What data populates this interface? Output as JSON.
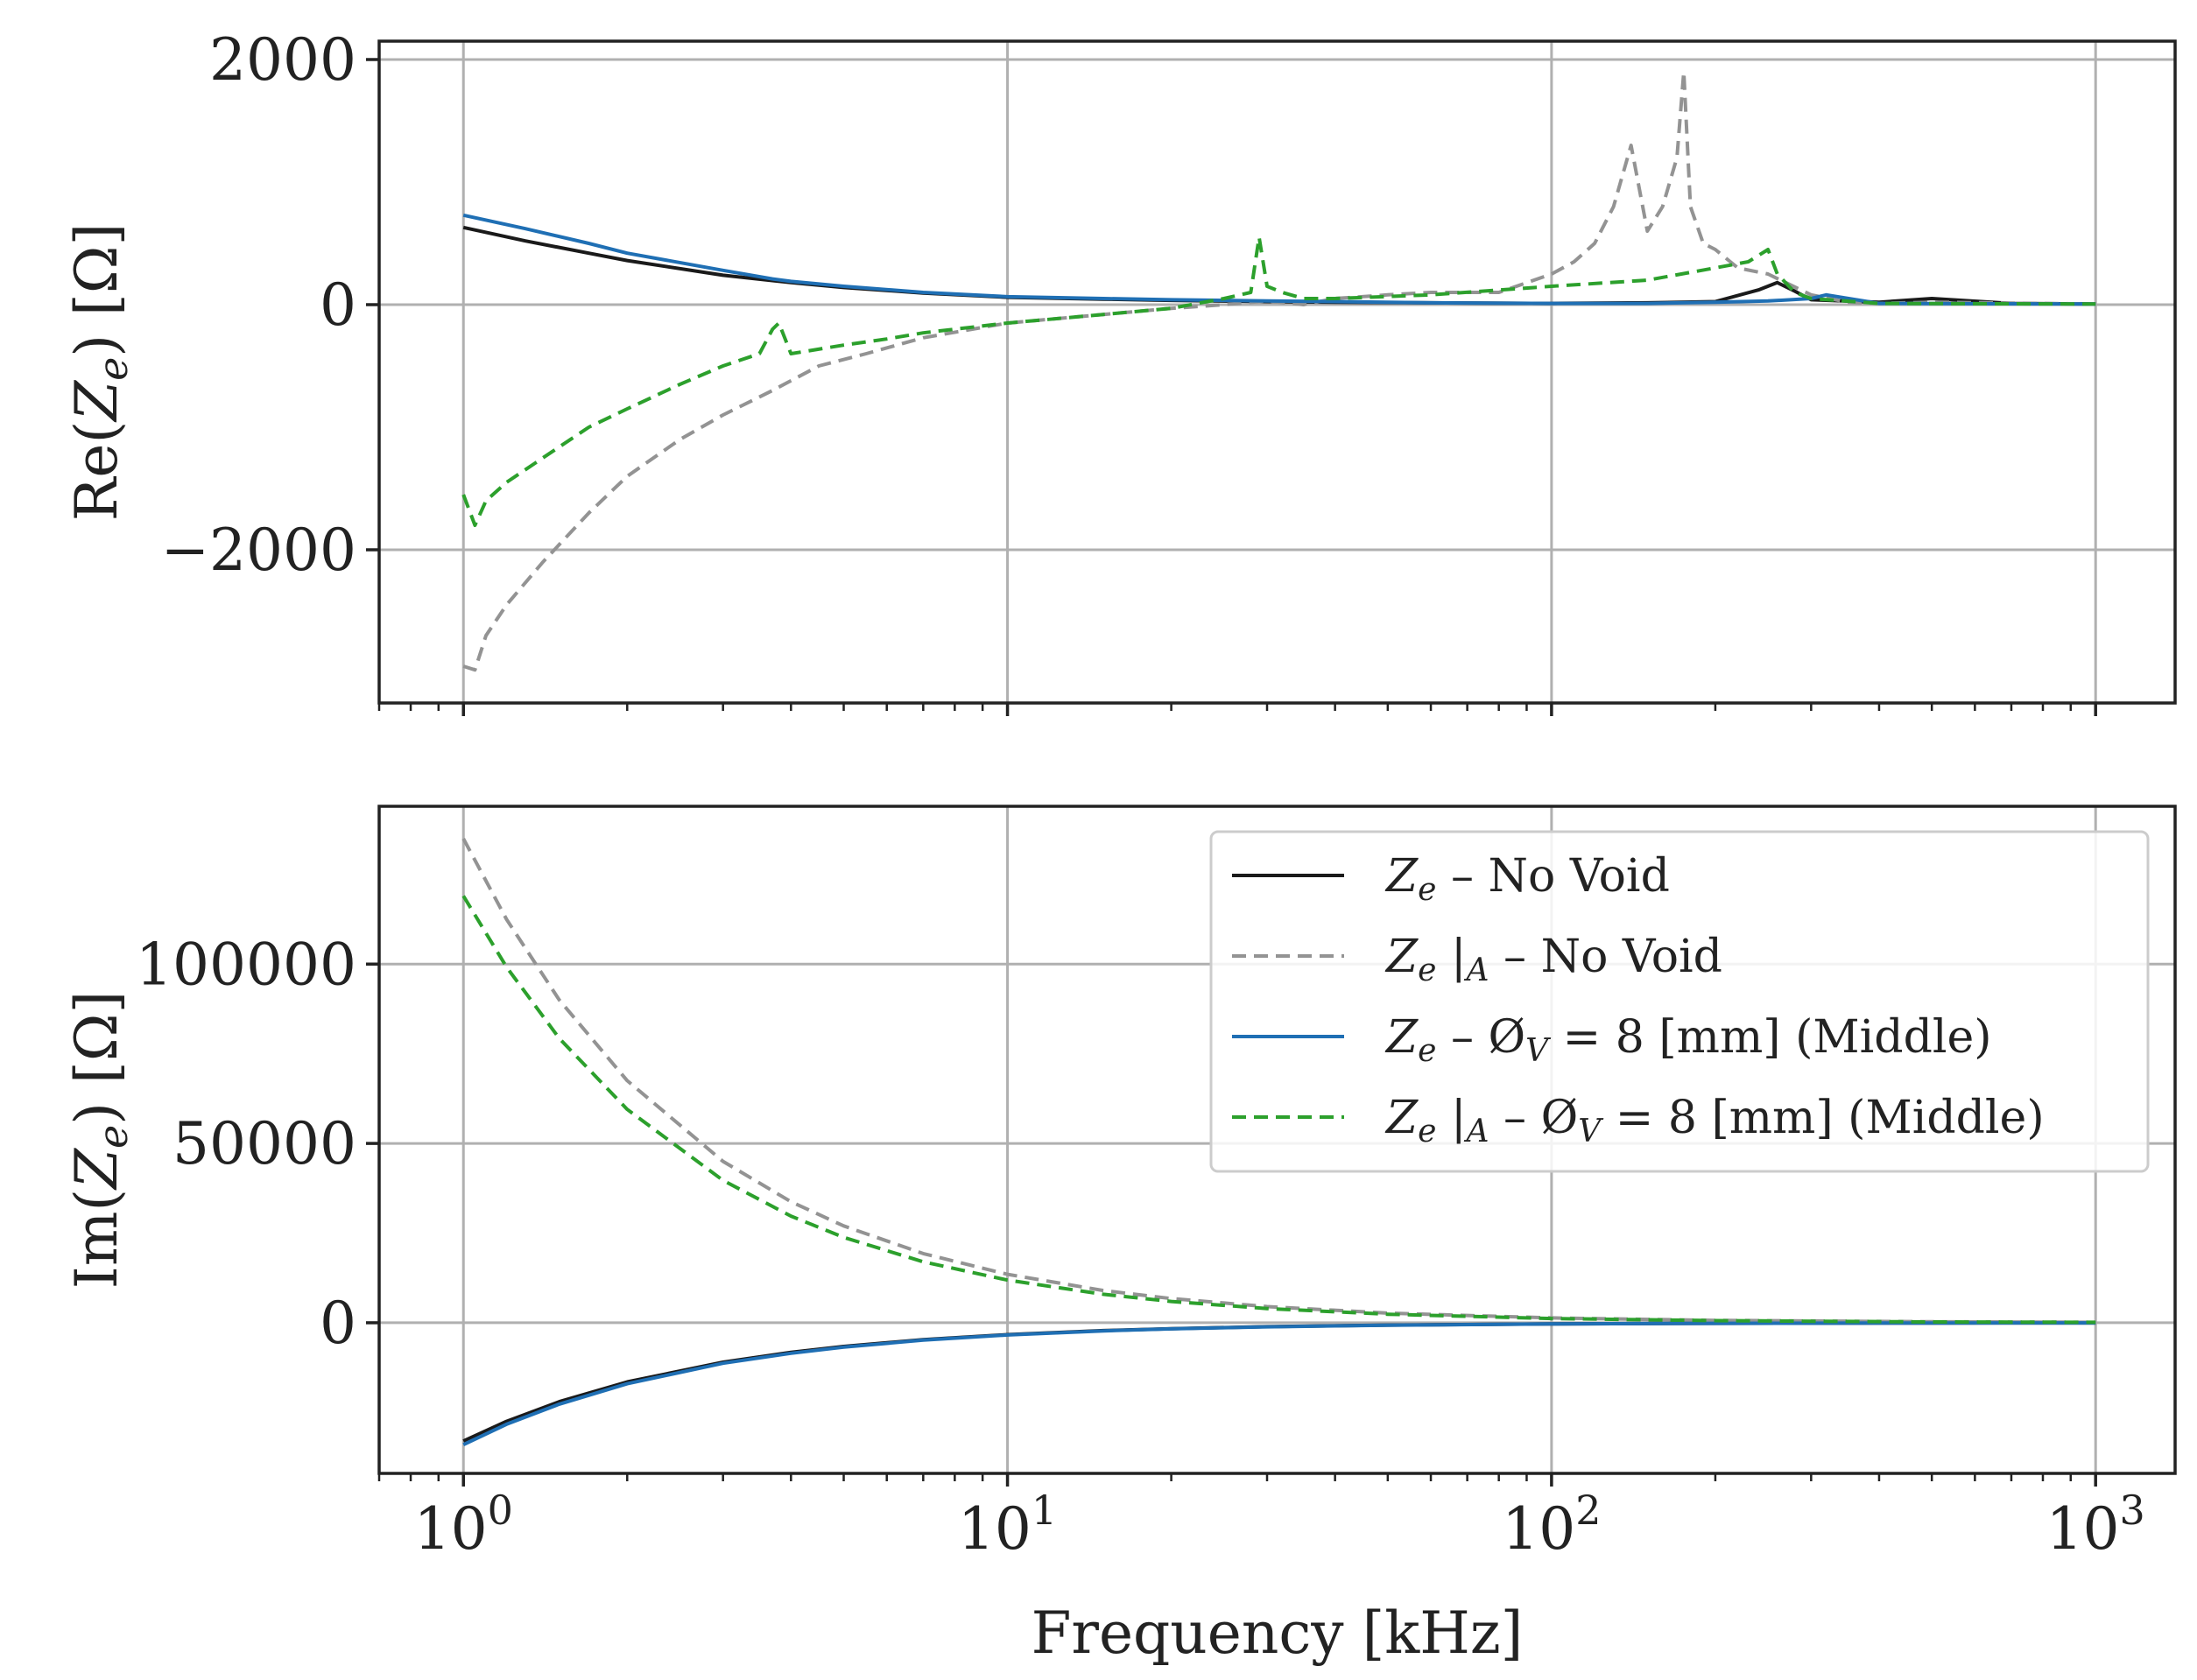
{
  "chart_data": [
    {
      "type": "line",
      "title": "",
      "xlabel": "",
      "ylabel": "Re(Z_e) [Ω]",
      "xscale": "log",
      "xlim": [
        0.7,
        1400
      ],
      "ylim": [
        -3250,
        2150
      ],
      "grid": true,
      "xticks": [
        {
          "value": 1,
          "base": "10",
          "exp": "0"
        },
        {
          "value": 10,
          "base": "10",
          "exp": "1"
        },
        {
          "value": 100,
          "base": "10",
          "exp": "2"
        },
        {
          "value": 1000,
          "base": "10",
          "exp": "3"
        }
      ],
      "show_xtick_labels": false,
      "yticks": [
        {
          "value": 2000,
          "label": "2000"
        },
        {
          "value": 0,
          "label": "0"
        },
        {
          "value": -2000,
          "label": "−2000"
        }
      ],
      "series": [
        {
          "name": "Ze_no_void",
          "color": "#1a1a1a",
          "dash": "solid",
          "x": [
            1,
            1.3,
            1.7,
            2,
            3,
            4,
            5,
            7,
            10,
            15,
            20,
            30,
            40,
            60,
            100,
            150,
            200,
            240,
            260,
            280,
            300,
            400,
            500,
            700,
            1000
          ],
          "y": [
            630,
            520,
            420,
            360,
            240,
            180,
            140,
            95,
            60,
            45,
            35,
            25,
            20,
            15,
            10,
            15,
            25,
            120,
            180,
            110,
            40,
            20,
            50,
            10,
            5
          ]
        },
        {
          "name": "Ze_A_no_void",
          "color": "#939393",
          "dash": "dashed",
          "x": [
            1,
            1.05,
            1.1,
            1.2,
            1.4,
            1.7,
            2,
            2.5,
            3,
            3.7,
            4.5,
            5.5,
            7,
            10,
            15,
            20,
            25,
            30,
            35,
            40,
            50,
            60,
            80,
            100,
            110,
            120,
            130,
            140,
            150,
            160,
            170,
            175,
            180,
            190,
            200,
            220,
            250,
            300,
            350,
            400,
            500,
            1000
          ],
          "y": [
            -2950,
            -2980,
            -2700,
            -2450,
            -2100,
            -1700,
            -1400,
            -1100,
            -900,
            -700,
            -500,
            -400,
            -270,
            -150,
            -80,
            -30,
            0,
            30,
            0,
            50,
            80,
            100,
            100,
            250,
            350,
            500,
            800,
            1300,
            600,
            800,
            1200,
            1900,
            800,
            500,
            450,
            300,
            250,
            80,
            20,
            10,
            20,
            5
          ]
        },
        {
          "name": "Ze_void_8mm",
          "color": "#1f6fb4",
          "dash": "solid",
          "x": [
            1,
            1.3,
            1.7,
            2,
            3,
            3.7,
            4,
            5,
            7,
            10,
            15,
            20,
            30,
            40,
            60,
            100,
            150,
            200,
            250,
            300,
            320,
            400,
            1000
          ],
          "y": [
            730,
            620,
            500,
            420,
            280,
            210,
            190,
            150,
            100,
            65,
            50,
            40,
            30,
            25,
            15,
            10,
            10,
            20,
            30,
            50,
            80,
            10,
            5
          ]
        },
        {
          "name": "Ze_A_void_8mm",
          "color": "#2ca02c",
          "dash": "dashed",
          "x": [
            1,
            1.05,
            1.1,
            1.2,
            1.4,
            1.7,
            2,
            2.5,
            3,
            3.5,
            3.7,
            3.8,
            4,
            5,
            6,
            7,
            10,
            15,
            20,
            25,
            28,
            29,
            30,
            32,
            35,
            40,
            60,
            100,
            150,
            200,
            230,
            250,
            260,
            280,
            300,
            400,
            1000
          ],
          "y": [
            -1550,
            -1800,
            -1600,
            -1450,
            -1250,
            -1000,
            -850,
            -650,
            -500,
            -400,
            -200,
            -150,
            -400,
            -330,
            -280,
            -230,
            -150,
            -80,
            -30,
            50,
            100,
            550,
            150,
            100,
            50,
            50,
            80,
            150,
            200,
            300,
            350,
            450,
            250,
            100,
            50,
            10,
            5
          ]
        }
      ]
    },
    {
      "type": "line",
      "title": "",
      "xlabel": "Frequency [kHz]",
      "ylabel": "Im(Z_e) [Ω]",
      "xscale": "log",
      "xlim": [
        0.7,
        1400
      ],
      "ylim": [
        -42000,
        144000
      ],
      "grid": true,
      "xticks": [
        {
          "value": 1,
          "base": "10",
          "exp": "0"
        },
        {
          "value": 10,
          "base": "10",
          "exp": "1"
        },
        {
          "value": 100,
          "base": "10",
          "exp": "2"
        },
        {
          "value": 1000,
          "base": "10",
          "exp": "3"
        }
      ],
      "show_xtick_labels": true,
      "yticks": [
        {
          "value": 100000,
          "label": "100000"
        },
        {
          "value": 50000,
          "label": "50000"
        },
        {
          "value": 0,
          "label": "0"
        }
      ],
      "legend": {
        "position": "top-right",
        "entries": [
          {
            "series": "Ze_no_void",
            "symbol": "Z",
            "sub": "e",
            "eval_sub": "",
            "text": " – No Void"
          },
          {
            "series": "Ze_A_no_void",
            "symbol": "Z",
            "sub": "e",
            "eval_sub": "A",
            "text": " – No Void"
          },
          {
            "series": "Ze_void_8mm",
            "symbol": "Z",
            "sub": "e",
            "eval_sub": "",
            "text": " – Ø",
            "text_sub": "V",
            "text_tail": " = 8 [mm] (Middle)"
          },
          {
            "series": "Ze_A_void_8mm",
            "symbol": "Z",
            "sub": "e",
            "eval_sub": "A",
            "text": " – Ø",
            "text_sub": "V",
            "text_tail": " = 8 [mm] (Middle)"
          }
        ]
      },
      "series": [
        {
          "name": "Ze_no_void",
          "color": "#1a1a1a",
          "dash": "solid",
          "x": [
            1,
            1.2,
            1.5,
            2,
            3,
            4,
            5,
            7,
            10,
            15,
            20,
            30,
            50,
            100,
            200,
            500,
            1000
          ],
          "y": [
            -33000,
            -27500,
            -22000,
            -16500,
            -11000,
            -8250,
            -6600,
            -4700,
            -3300,
            -2200,
            -1650,
            -1100,
            -660,
            -330,
            -165,
            -66,
            -33
          ]
        },
        {
          "name": "Ze_A_no_void",
          "color": "#939393",
          "dash": "dashed",
          "x": [
            1,
            1.2,
            1.5,
            2,
            3,
            4,
            5,
            7,
            10,
            15,
            20,
            30,
            50,
            100,
            200,
            500,
            1000
          ],
          "y": [
            135000,
            112500,
            90000,
            67500,
            45000,
            33750,
            27000,
            19300,
            13500,
            9000,
            6750,
            4500,
            2700,
            1350,
            675,
            270,
            135
          ]
        },
        {
          "name": "Ze_void_8mm",
          "color": "#1f6fb4",
          "dash": "solid",
          "x": [
            1,
            1.2,
            1.5,
            2,
            3,
            4,
            5,
            7,
            10,
            15,
            20,
            30,
            50,
            100,
            200,
            500,
            1000
          ],
          "y": [
            -34000,
            -28300,
            -22700,
            -17000,
            -11300,
            -8500,
            -6800,
            -4850,
            -3400,
            -2270,
            -1700,
            -1130,
            -680,
            -340,
            -170,
            -68,
            -34
          ]
        },
        {
          "name": "Ze_A_void_8mm",
          "color": "#2ca02c",
          "dash": "dashed",
          "x": [
            1,
            1.2,
            1.5,
            2,
            3,
            4,
            5,
            7,
            10,
            15,
            20,
            30,
            50,
            100,
            200,
            500,
            1000
          ],
          "y": [
            119000,
            99200,
            79300,
            59500,
            39700,
            29750,
            23800,
            17000,
            11900,
            7930,
            5950,
            3970,
            2380,
            1190,
            595,
            238,
            119
          ]
        }
      ]
    }
  ]
}
